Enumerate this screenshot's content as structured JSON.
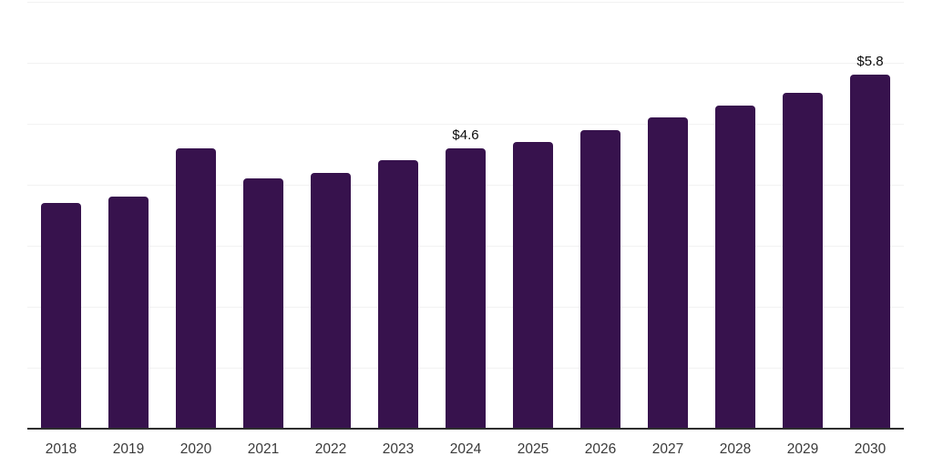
{
  "chart_data": {
    "type": "bar",
    "title": "",
    "xlabel": "",
    "ylabel": "",
    "categories": [
      "2018",
      "2019",
      "2020",
      "2021",
      "2022",
      "2023",
      "2024",
      "2025",
      "2026",
      "2027",
      "2028",
      "2029",
      "2030"
    ],
    "values": [
      3.7,
      3.8,
      4.6,
      4.1,
      4.2,
      4.4,
      4.6,
      4.7,
      4.9,
      5.1,
      5.3,
      5.5,
      5.8
    ],
    "data_labels": {
      "2024": "$4.6",
      "2030": "$5.8"
    },
    "ylim": [
      0,
      7
    ],
    "gridline_step": 1,
    "grid": true,
    "legend": false,
    "colors": {
      "bar": "#37124D",
      "gridline": "#F2F2F2",
      "axis_line": "#2E2E2E",
      "tick_label": "#3A3A3A",
      "data_label": "#0A0A0A",
      "background": "#FFFFFF"
    }
  }
}
